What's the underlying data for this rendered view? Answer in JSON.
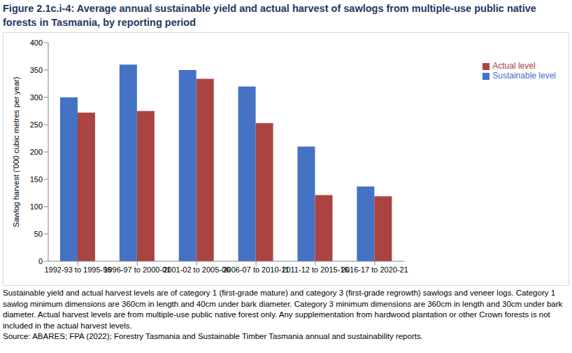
{
  "chart_data": {
    "type": "bar",
    "title": "Figure 2.1c.i-4: Average annual sustainable yield and actual harvest of sawlogs from multiple-use public native forests in Tasmania, by reporting period",
    "y_label": "Sawlog harvest ('000 cubic metres per year)",
    "categories": [
      "1992-93 to 1995-96",
      "1996-97 to 2000-01",
      "2001-02 to 2005-06",
      "2006-07 to 2010-11",
      "2011-12 to 2015-16",
      "2016-17 to 2020-21"
    ],
    "series": [
      {
        "name": "Sustainable level",
        "color": "#4472c4",
        "values": [
          300,
          360,
          350,
          320,
          210,
          137
        ]
      },
      {
        "name": "Actual level",
        "color": "#a94442",
        "values": [
          272,
          275,
          334,
          253,
          121,
          119
        ]
      }
    ],
    "ylim": [
      0,
      400
    ],
    "yticks": [
      0,
      50,
      100,
      150,
      200,
      250,
      300,
      350,
      400
    ],
    "grid": false,
    "legend": "right",
    "annotations": [
      "Sustainable yield and actual harvest levels are of category 1 (first-grade mature) and category 3 (first-grade regrowth) sawlogs and veneer logs. Category 1 sawlog minimum dimensions are 360cm in length and 40cm under bark diameter. Category 3 minimum dimensions are 360cm in length and 30cm under bark diameter. Actual harvest levels are from multiple-use public native forest only. Any supplementation from hardwood plantation or other Crown forests is not included in the actual harvest levels.",
      "Source: ABARES; FPA (2022); Forestry Tasmania and Sustainable Timber Tasmania annual and sustainability reports."
    ]
  }
}
